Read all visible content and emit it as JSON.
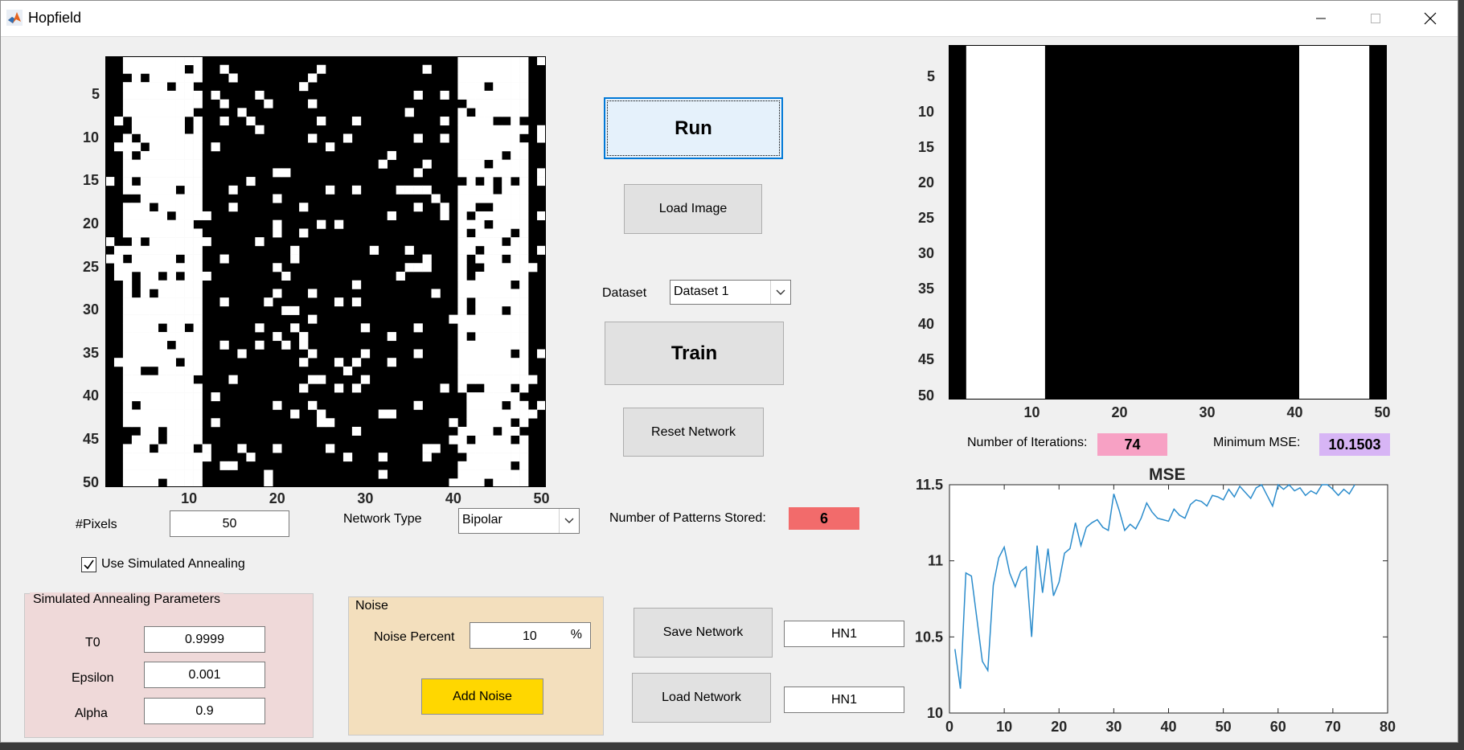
{
  "window": {
    "title": "Hopfield",
    "app_icon": "matlab-icon",
    "controls": [
      "minimize-icon",
      "maximize-icon",
      "close-icon"
    ]
  },
  "input_axes": {
    "y_ticks": [
      "5",
      "10",
      "15",
      "20",
      "25",
      "30",
      "35",
      "40",
      "45",
      "50"
    ],
    "x_ticks": [
      "10",
      "20",
      "30",
      "40",
      "50"
    ]
  },
  "output_axes": {
    "y_ticks": [
      "5",
      "10",
      "15",
      "20",
      "25",
      "30",
      "35",
      "40",
      "45",
      "50"
    ],
    "x_ticks": [
      "10",
      "20",
      "30",
      "40",
      "50"
    ]
  },
  "buttons": {
    "run": "Run",
    "load_image": "Load Image",
    "train": "Train",
    "reset_network": "Reset Network",
    "save_network": "Save Network",
    "load_network": "Load Network",
    "add_noise": "Add Noise"
  },
  "dataset": {
    "label": "Dataset",
    "value": "Dataset 1"
  },
  "pixels": {
    "label": "#Pixels",
    "value": "50"
  },
  "network_type": {
    "label": "Network Type",
    "value": "Bipolar"
  },
  "patterns": {
    "label": "Number of Patterns Stored:",
    "value": "6"
  },
  "iterations": {
    "label": "Number of Iterations:",
    "value": "74"
  },
  "min_mse": {
    "label": "Minimum MSE:",
    "value": "10.1503"
  },
  "simulated_annealing": {
    "checkbox_label": "Use Simulated Annealing",
    "checked": true
  },
  "sa_params": {
    "title": "Simulated Annealing Parameters",
    "t0_label": "T0",
    "t0": "0.9999",
    "epsilon_label": "Epsilon",
    "epsilon": "0.001",
    "alpha_label": "Alpha",
    "alpha": "0.9"
  },
  "noise": {
    "title": "Noise",
    "percent_label": "Noise Percent",
    "percent": "10",
    "unit": "%"
  },
  "network_files": {
    "save_name": "HN1",
    "load_name": "HN1"
  },
  "colors": {
    "patterns_badge": "#f26b6b",
    "iterations_badge": "#f7a1c4",
    "mse_badge": "#d7b5f5",
    "add_noise": "#ffd700",
    "sa_panel": "#efd9d9",
    "noise_panel": "#f3dfbd",
    "mse_line": "#2b8ccc"
  },
  "chart_data": {
    "type": "line",
    "title": "MSE",
    "xlim": [
      0,
      80
    ],
    "ylim": [
      10,
      11.5
    ],
    "x_ticks": [
      0,
      10,
      20,
      30,
      40,
      50,
      60,
      70,
      80
    ],
    "y_ticks": [
      10,
      10.5,
      11,
      11.5
    ],
    "grid": false,
    "series": [
      {
        "x": [
          1,
          2,
          3,
          4,
          5,
          6,
          7,
          8,
          9,
          10,
          11,
          12,
          13,
          14,
          15,
          16,
          17,
          18,
          19,
          20,
          21,
          22,
          23,
          24,
          25,
          26,
          27,
          28,
          29,
          30,
          31,
          32,
          33,
          34,
          35,
          36,
          37,
          38,
          39,
          40,
          41,
          42,
          43,
          44,
          45,
          46,
          47,
          48,
          49,
          50,
          51,
          52,
          53,
          54,
          55,
          56,
          57,
          58,
          59,
          60,
          61,
          62,
          63,
          64,
          65,
          66,
          67,
          68,
          69,
          70,
          71,
          72,
          73,
          74
        ],
        "values": [
          10.42,
          10.16,
          10.92,
          10.9,
          10.62,
          10.34,
          10.28,
          10.84,
          11.02,
          11.09,
          10.92,
          10.83,
          10.93,
          10.96,
          10.5,
          11.1,
          10.79,
          11.08,
          10.77,
          10.86,
          11.05,
          11.08,
          11.25,
          11.1,
          11.22,
          11.25,
          11.27,
          11.22,
          11.2,
          11.44,
          11.33,
          11.2,
          11.24,
          11.21,
          11.28,
          11.38,
          11.32,
          11.28,
          11.27,
          11.26,
          11.34,
          11.3,
          11.28,
          11.37,
          11.4,
          11.39,
          11.36,
          11.43,
          11.42,
          11.4,
          11.47,
          11.42,
          11.49,
          11.45,
          11.41,
          11.48,
          11.5,
          11.43,
          11.36,
          11.5,
          11.47,
          11.51,
          11.46,
          11.48,
          11.43,
          11.46,
          11.44,
          11.5,
          11.52,
          11.47,
          11.43,
          11.47,
          11.44,
          11.5
        ]
      }
    ]
  }
}
